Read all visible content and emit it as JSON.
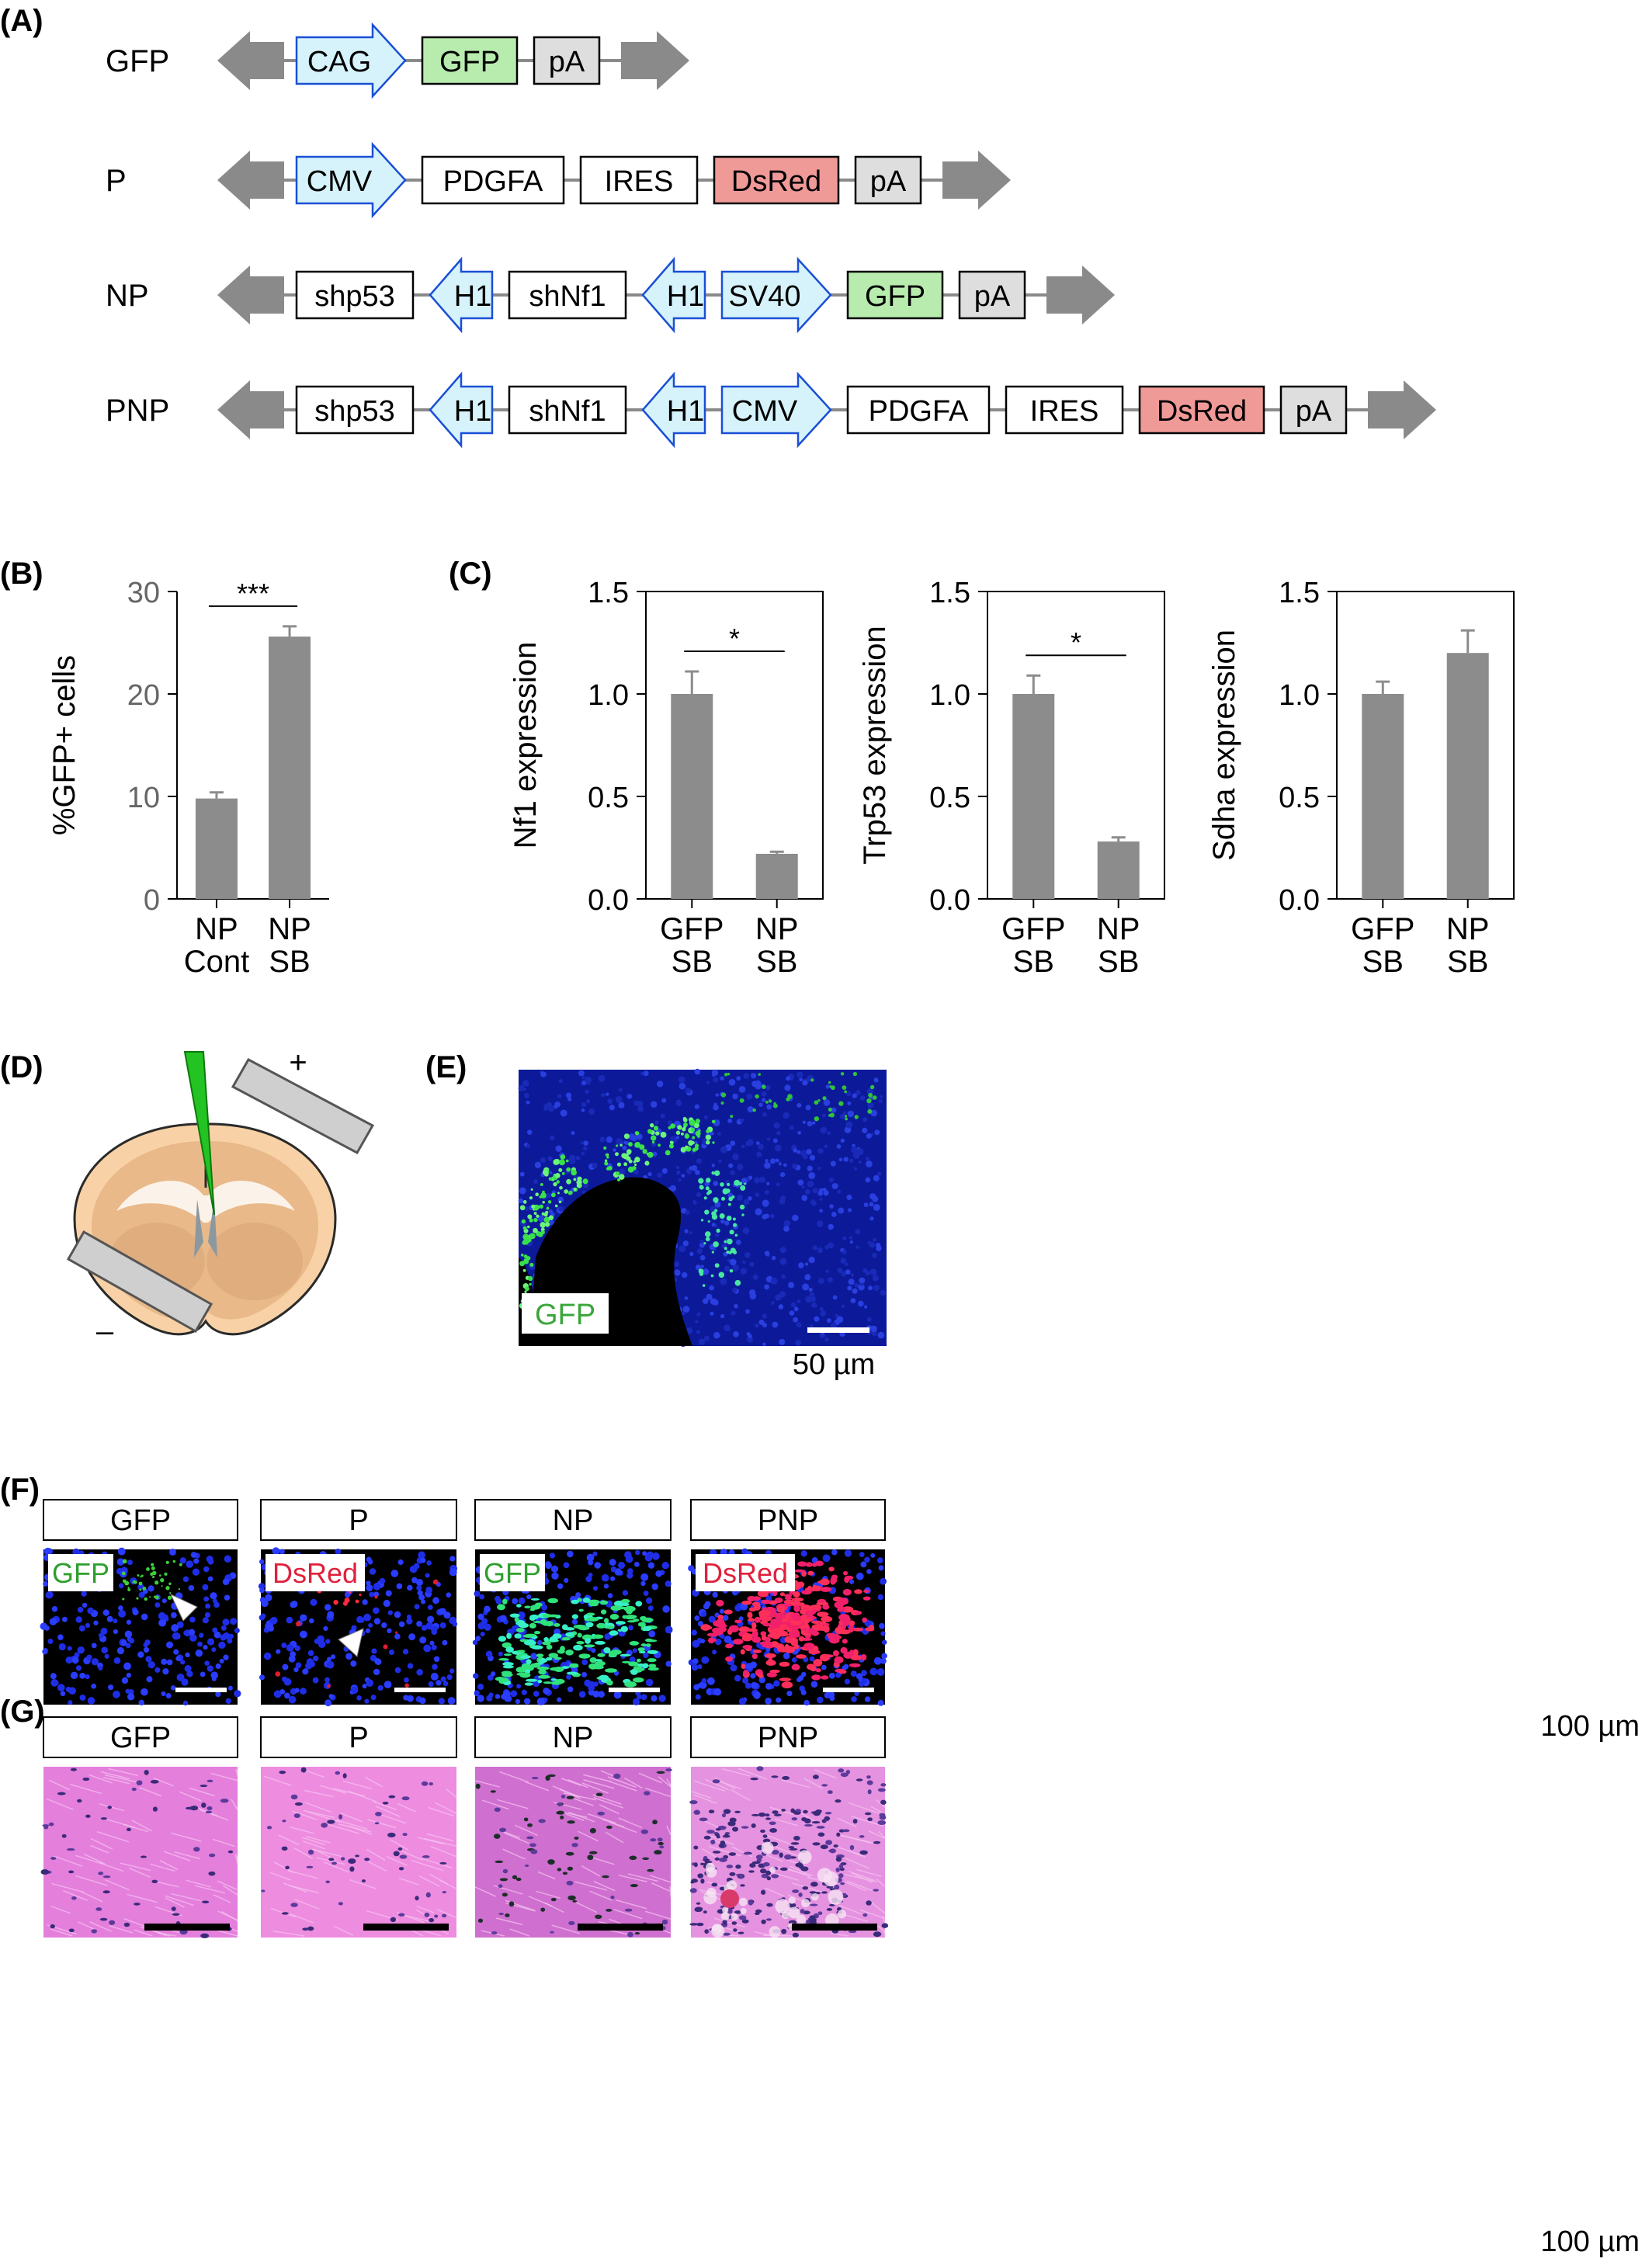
{
  "panels": {
    "A": "(A)",
    "B": "(B)",
    "C": "(C)",
    "D": "(D)",
    "E": "(E)",
    "F": "(F)",
    "G": "(G)"
  },
  "constructs": [
    {
      "name": "GFP",
      "elements": [
        {
          "label": "CAG",
          "kind": "promoter-right"
        },
        {
          "label": "GFP",
          "kind": "gfp"
        },
        {
          "label": "pA",
          "kind": "pa"
        }
      ]
    },
    {
      "name": "P",
      "elements": [
        {
          "label": "CMV",
          "kind": "promoter-right"
        },
        {
          "label": "PDGFA",
          "kind": "box"
        },
        {
          "label": "IRES",
          "kind": "box"
        },
        {
          "label": "DsRed",
          "kind": "dsred"
        },
        {
          "label": "pA",
          "kind": "pa"
        }
      ]
    },
    {
      "name": "NP",
      "elements": [
        {
          "label": "shp53",
          "kind": "box"
        },
        {
          "label": "H1",
          "kind": "promoter-left"
        },
        {
          "label": "shNf1",
          "kind": "box"
        },
        {
          "label": "H1",
          "kind": "promoter-left"
        },
        {
          "label": "SV40",
          "kind": "promoter-right"
        },
        {
          "label": "GFP",
          "kind": "gfp"
        },
        {
          "label": "pA",
          "kind": "pa"
        }
      ]
    },
    {
      "name": "PNP",
      "elements": [
        {
          "label": "shp53",
          "kind": "box"
        },
        {
          "label": "H1",
          "kind": "promoter-left"
        },
        {
          "label": "shNf1",
          "kind": "box"
        },
        {
          "label": "H1",
          "kind": "promoter-left"
        },
        {
          "label": "CMV",
          "kind": "promoter-right"
        },
        {
          "label": "PDGFA",
          "kind": "box"
        },
        {
          "label": "IRES",
          "kind": "box"
        },
        {
          "label": "DsRed",
          "kind": "dsred"
        },
        {
          "label": "pA",
          "kind": "pa"
        }
      ]
    }
  ],
  "chart_data": [
    {
      "type": "bar",
      "panel": "B",
      "categories": [
        "NP\nCont",
        "NP\nSB"
      ],
      "values": [
        9.8,
        25.6
      ],
      "errors": [
        0.6,
        1.0
      ],
      "ylabel": "%GFP+ cells",
      "ylim": [
        0,
        30
      ],
      "yticks": [
        0,
        10,
        20,
        30
      ],
      "significance": "***",
      "grid": false
    },
    {
      "type": "bar",
      "panel": "C",
      "categories": [
        "GFP\nSB",
        "NP\nSB"
      ],
      "values": [
        1.0,
        0.22
      ],
      "errors": [
        0.11,
        0.01
      ],
      "ylabel": "Nf1 expression",
      "ylim": [
        0,
        1.5
      ],
      "yticks": [
        "0.0",
        "0.5",
        "1.0",
        "1.5"
      ],
      "significance": "*",
      "grid": false
    },
    {
      "type": "bar",
      "panel": "C",
      "categories": [
        "GFP\nSB",
        "NP\nSB"
      ],
      "values": [
        1.0,
        0.28
      ],
      "errors": [
        0.09,
        0.02
      ],
      "ylabel": "Trp53 expression",
      "ylim": [
        0,
        1.5
      ],
      "yticks": [
        "0.0",
        "0.5",
        "1.0",
        "1.5"
      ],
      "significance": "*",
      "grid": false
    },
    {
      "type": "bar",
      "panel": "C",
      "categories": [
        "GFP\nSB",
        "NP\nSB"
      ],
      "values": [
        1.0,
        1.2
      ],
      "errors": [
        0.06,
        0.11
      ],
      "ylabel": "Sdha expression",
      "ylim": [
        0,
        1.5
      ],
      "yticks": [
        "0.0",
        "0.5",
        "1.0",
        "1.5"
      ],
      "significance": "",
      "grid": false
    }
  ],
  "panelD": {
    "plus": "+",
    "minus": "–"
  },
  "panelE": {
    "label": "GFP",
    "scale": "50 µm",
    "label_color": "#3aa63a"
  },
  "panelF": {
    "titles": [
      "GFP",
      "P",
      "NP",
      "PNP"
    ],
    "stains": [
      "GFP",
      "DsRed",
      "GFP",
      "DsRed"
    ],
    "stain_colors": [
      "#2e9e2e",
      "#e0203c",
      "#2e9e2e",
      "#e0203c"
    ],
    "scale": "100 µm"
  },
  "panelG": {
    "titles": [
      "GFP",
      "P",
      "NP",
      "PNP"
    ],
    "scale": "100 µm"
  },
  "colors": {
    "promoter_fill": "#d6f3fb",
    "promoter_stroke": "#1a4fd6",
    "gfp_fill": "#b8ecae",
    "dsred_fill": "#f09a98",
    "pa_fill": "#dedede",
    "bar": "#8c8c8c",
    "itr": "#8a8a8a"
  }
}
